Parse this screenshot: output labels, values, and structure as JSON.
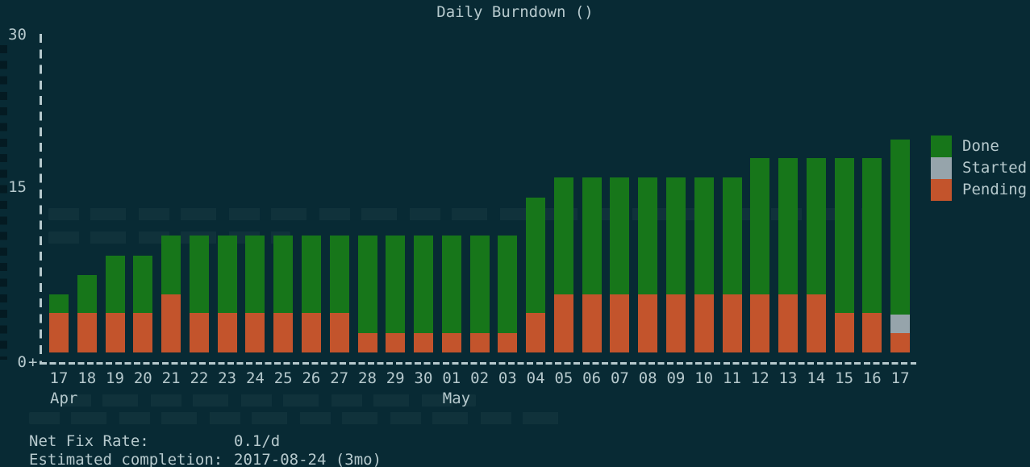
{
  "title": "Daily Burndown ()",
  "legend": [
    {
      "label": "Done",
      "color": "#17761a"
    },
    {
      "label": "Started",
      "color": "#96a4ab"
    },
    {
      "label": "Pending",
      "color": "#c3542c"
    }
  ],
  "chart_data": {
    "type": "bar",
    "stacked": true,
    "title": "Daily Burndown ()",
    "xlabel": "",
    "ylabel": "",
    "ylim": [
      0,
      30
    ],
    "grid": false,
    "legend_position": "right",
    "origin_marker": "+",
    "yticks": [
      {
        "value": 30,
        "label": "30"
      },
      {
        "value": 15,
        "label": "15"
      },
      {
        "value": 0,
        "label": "0"
      }
    ],
    "categories": [
      "17",
      "18",
      "19",
      "20",
      "21",
      "22",
      "23",
      "24",
      "25",
      "26",
      "27",
      "28",
      "29",
      "30",
      "01",
      "02",
      "03",
      "04",
      "05",
      "06",
      "07",
      "08",
      "09",
      "10",
      "11",
      "12",
      "13",
      "14",
      "15",
      "16",
      "17"
    ],
    "month_labels": [
      {
        "index": 0,
        "label": "Apr"
      },
      {
        "index": 14,
        "label": "May"
      }
    ],
    "series": [
      {
        "name": "Pending",
        "color": "#c3542c",
        "values": [
          3.7,
          3.7,
          3.7,
          3.7,
          5.5,
          3.7,
          3.7,
          3.7,
          3.7,
          3.7,
          3.7,
          1.8,
          1.8,
          1.8,
          1.8,
          1.8,
          1.8,
          3.7,
          5.5,
          5.5,
          5.5,
          5.5,
          5.5,
          5.5,
          5.5,
          5.5,
          5.5,
          5.5,
          3.7,
          3.7,
          1.8
        ]
      },
      {
        "name": "Started",
        "color": "#96a4ab",
        "values": [
          0,
          0,
          0,
          0,
          0,
          0,
          0,
          0,
          0,
          0,
          0,
          0,
          0,
          0,
          0,
          0,
          0,
          0,
          0,
          0,
          0,
          0,
          0,
          0,
          0,
          0,
          0,
          0,
          0,
          0,
          1.8
        ]
      },
      {
        "name": "Done",
        "color": "#17761a",
        "values": [
          1.8,
          3.6,
          5.4,
          5.4,
          5.5,
          7.3,
          7.3,
          7.3,
          7.3,
          7.3,
          7.3,
          9.2,
          9.2,
          9.2,
          9.2,
          9.2,
          9.2,
          10.9,
          11.0,
          11.0,
          11.0,
          11.0,
          11.0,
          11.0,
          11.0,
          12.8,
          12.8,
          12.8,
          14.6,
          14.6,
          16.5
        ]
      }
    ]
  },
  "stats": {
    "net_fix_rate_label": "Net Fix Rate:",
    "net_fix_rate_value": "0.1/d",
    "completion_label": "Estimated completion:",
    "completion_value": "2017-08-24 (3mo)"
  }
}
